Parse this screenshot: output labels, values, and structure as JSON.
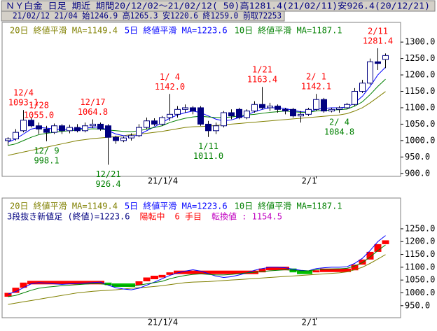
{
  "header": {
    "line1": "ＮＹ白金 日足 期近 期間20/12/02～21/02/12( 50)高1281.4(21/02/11)安926.4(20/12/21)",
    "line2": "21/02/12 21/04 始1246.9 高1265.3 安1220.6 終1259.0 前取72253"
  },
  "chart_data": [
    {
      "type": "candlestick",
      "categories": [
        null,
        null,
        null,
        null,
        null,
        null,
        null,
        null,
        null,
        null,
        null,
        null,
        null,
        null,
        null,
        null,
        null,
        null,
        null,
        null,
        null,
        "21/1/4",
        null,
        null,
        null,
        null,
        null,
        null,
        null,
        null,
        null,
        null,
        null,
        null,
        null,
        null,
        null,
        null,
        null,
        null,
        "2/1",
        null,
        null,
        null,
        null,
        null,
        null,
        null,
        null,
        null
      ],
      "open": [
        1000,
        1005,
        1030,
        1062,
        1045,
        1035,
        1025,
        1045,
        1030,
        1040,
        1030,
        1045,
        1050,
        1045,
        1010,
        1000,
        1008,
        1015,
        1040,
        1060,
        1050,
        1070,
        1080,
        1095,
        1100,
        1100,
        1050,
        1030,
        1045,
        1085,
        1095,
        1070,
        1090,
        1110,
        1100,
        1105,
        1095,
        1095,
        1075,
        1080,
        1095,
        1125,
        1090,
        1095,
        1100,
        1110,
        1150,
        1175,
        1240,
        1246.9
      ],
      "high": [
        1010,
        1035,
        1093.1,
        1070,
        1055,
        1045,
        1052,
        1050,
        1048,
        1050,
        1055,
        1064.8,
        1055,
        1050,
        1015,
        1012,
        1022,
        1050,
        1070,
        1068,
        1075,
        1142.0,
        1105,
        1110,
        1105,
        1105,
        1060,
        1055,
        1090,
        1095,
        1100,
        1095,
        1120,
        1163.4,
        1115,
        1110,
        1100,
        1100,
        1090,
        1100,
        1142.1,
        1130,
        1100,
        1105,
        1115,
        1160,
        1185,
        1250,
        1281.4,
        1265.3
      ],
      "low": [
        985,
        1000,
        1025,
        1040,
        1020,
        998.1,
        1020,
        1020,
        1022,
        1025,
        1025,
        1038,
        1030,
        926.4,
        990,
        995,
        1000,
        1010,
        1035,
        1045,
        1045,
        1060,
        1070,
        1085,
        1080,
        1045,
        1011.0,
        1020,
        1040,
        1065,
        1065,
        1065,
        1085,
        1095,
        1090,
        1085,
        1080,
        1070,
        1055.0,
        1075,
        1090,
        1085,
        1086,
        1084.8,
        1095,
        1105,
        1145,
        1170,
        1215,
        1220.6
      ],
      "close": [
        1005,
        1025,
        1062,
        1045,
        1035,
        1025,
        1045,
        1030,
        1040,
        1030,
        1045,
        1050,
        1035,
        1010,
        1000,
        1008,
        1015,
        1040,
        1060,
        1050,
        1070,
        1080,
        1095,
        1100,
        1090,
        1050,
        1030,
        1045,
        1085,
        1075,
        1070,
        1090,
        1110,
        1100,
        1105,
        1095,
        1090,
        1075,
        1080,
        1095,
        1125,
        1090,
        1095,
        1100,
        1110,
        1150,
        1175,
        1240,
        1235,
        1259.0
      ],
      "up_color": "#ffffff",
      "down_color": "#000080",
      "series": [
        {
          "name": "20日 終値平滑 MA=1149.4",
          "color": "#808000",
          "values": [
            955,
            960,
            965,
            970,
            975,
            980,
            985,
            990,
            995,
            1000,
            1003,
            1006,
            1008,
            1010,
            1012,
            1015,
            1018,
            1020,
            1022,
            1025,
            1028,
            1032,
            1036,
            1040,
            1042,
            1043,
            1044,
            1046,
            1048,
            1050,
            1052,
            1054,
            1056,
            1058,
            1060,
            1062,
            1064,
            1066,
            1068,
            1070,
            1072,
            1074,
            1076,
            1078,
            1082,
            1090,
            1100,
            1115,
            1132,
            1149.4
          ]
        },
        {
          "name": "5日 終値平滑 MA=1223.6",
          "color": "#0000ff",
          "values": [
            995,
            1005,
            1020,
            1035,
            1040,
            1038,
            1035,
            1033,
            1035,
            1036,
            1038,
            1040,
            1042,
            1030,
            1020,
            1015,
            1012,
            1018,
            1030,
            1042,
            1055,
            1068,
            1078,
            1085,
            1090,
            1085,
            1075,
            1065,
            1060,
            1063,
            1070,
            1078,
            1088,
            1095,
            1100,
            1100,
            1098,
            1092,
            1088,
            1086,
            1095,
            1098,
            1100,
            1100,
            1102,
            1115,
            1135,
            1165,
            1200,
            1223.6
          ]
        },
        {
          "name": "10日 終値平滑 MA=1187.1",
          "color": "#008000",
          "values": [
            985,
            990,
            1000,
            1010,
            1018,
            1022,
            1025,
            1028,
            1030,
            1032,
            1034,
            1036,
            1035,
            1032,
            1030,
            1028,
            1027,
            1030,
            1035,
            1040,
            1045,
            1055,
            1062,
            1068,
            1072,
            1074,
            1072,
            1070,
            1070,
            1072,
            1075,
            1078,
            1080,
            1083,
            1086,
            1088,
            1090,
            1088,
            1086,
            1086,
            1090,
            1092,
            1093,
            1094,
            1096,
            1105,
            1118,
            1140,
            1165,
            1187.1
          ]
        }
      ],
      "ylim": [
        891,
        1360
      ],
      "yticks": [
        {
          "value": 900,
          "label": "900.0"
        },
        {
          "value": 950,
          "label": "950.0"
        },
        {
          "value": 1000,
          "label": "1000.0"
        },
        {
          "value": 1050,
          "label": "1050.0"
        },
        {
          "value": 1100,
          "label": "1100.0"
        },
        {
          "value": 1150,
          "label": "1150.0"
        },
        {
          "value": 1200,
          "label": "1200.0"
        },
        {
          "value": 1250,
          "label": "1250.0"
        },
        {
          "value": 1300,
          "label": "1300.0"
        }
      ],
      "high_color": "#ff0000",
      "low_color": "#008000",
      "annotations": [
        {
          "date": "12/4",
          "value": 1093.1
        },
        {
          "date": "12/ 9",
          "value": 998.1
        },
        {
          "date": "12/17",
          "value": 1064.8
        },
        {
          "date": "12/21",
          "value": 926.4
        },
        {
          "date": "1/ 4",
          "value": 1142.0,
          "label": "1142.0"
        },
        {
          "date": "1/11",
          "value": 1011.0,
          "label": "1011.0"
        },
        {
          "date": "1/21",
          "value": 1163.4
        },
        {
          "date": "1/28",
          "value": 1055.0,
          "label": "1055.0"
        },
        {
          "date": "2/ 1",
          "value": 1142.1
        },
        {
          "date": "2/ 4",
          "value": 1084.8
        },
        {
          "date": "2/11",
          "value": 1281.4
        }
      ]
    },
    {
      "type": "line_break",
      "categories": [
        null,
        null,
        null,
        null,
        null,
        null,
        null,
        null,
        null,
        null,
        null,
        null,
        null,
        null,
        null,
        null,
        null,
        null,
        null,
        null,
        null,
        "21/1/4",
        null,
        null,
        null,
        null,
        null,
        null,
        null,
        null,
        null,
        null,
        null,
        null,
        null,
        null,
        null,
        null,
        null,
        null,
        "2/1",
        null,
        null,
        null,
        null,
        null,
        null,
        null,
        null,
        null
      ],
      "status": [
        {
          "text": "3段抜き新値足 (終値)=1223.6",
          "color": "#000080"
        },
        {
          "text": "陽転中",
          "color": "#ff0000"
        },
        {
          "text": "6 手目",
          "color": "#ff0000"
        },
        {
          "text": "転換値 : 1154.5",
          "color": "#c000c0"
        }
      ],
      "base": 985,
      "values": [
        1000,
        1020,
        1040,
        1040,
        1040,
        1040,
        1040,
        1040,
        1040,
        1040,
        1040,
        1040,
        1040,
        1030,
        1030,
        1030,
        1030,
        1045,
        1060,
        1060,
        1070,
        1080,
        1080,
        1080,
        1080,
        1080,
        1080,
        1080,
        1080,
        1080,
        1080,
        1080,
        1080,
        1095,
        1095,
        1095,
        1095,
        1080,
        1080,
        1080,
        1088,
        1088,
        1088,
        1088,
        1088,
        1110,
        1130,
        1160,
        1190,
        1205
      ],
      "up_color": "#ff0000",
      "down_color": "#00c000",
      "series": [
        {
          "name": "20日 終値平滑 MA=1149.4",
          "color": "#808000",
          "values": [
            955,
            960,
            965,
            970,
            975,
            980,
            985,
            990,
            995,
            1000,
            1003,
            1006,
            1008,
            1010,
            1012,
            1015,
            1018,
            1020,
            1022,
            1025,
            1028,
            1032,
            1036,
            1040,
            1042,
            1043,
            1044,
            1046,
            1048,
            1050,
            1052,
            1054,
            1056,
            1058,
            1060,
            1062,
            1064,
            1066,
            1068,
            1070,
            1072,
            1074,
            1076,
            1078,
            1082,
            1090,
            1100,
            1115,
            1132,
            1149.4
          ]
        },
        {
          "name": "5日 終値平滑 MA=1223.6",
          "color": "#0000ff",
          "values": [
            995,
            1005,
            1020,
            1035,
            1040,
            1038,
            1035,
            1033,
            1035,
            1036,
            1038,
            1040,
            1042,
            1030,
            1020,
            1015,
            1012,
            1018,
            1030,
            1042,
            1055,
            1068,
            1078,
            1085,
            1090,
            1085,
            1075,
            1065,
            1060,
            1063,
            1070,
            1078,
            1088,
            1095,
            1100,
            1100,
            1098,
            1092,
            1088,
            1086,
            1095,
            1098,
            1100,
            1100,
            1102,
            1115,
            1135,
            1165,
            1200,
            1223.6
          ]
        },
        {
          "name": "10日 終値平滑 MA=1187.1",
          "color": "#008000",
          "values": [
            985,
            990,
            1000,
            1010,
            1018,
            1022,
            1025,
            1028,
            1030,
            1032,
            1034,
            1036,
            1035,
            1032,
            1030,
            1028,
            1027,
            1030,
            1035,
            1040,
            1045,
            1055,
            1062,
            1068,
            1072,
            1074,
            1072,
            1070,
            1070,
            1072,
            1075,
            1078,
            1080,
            1083,
            1086,
            1088,
            1090,
            1088,
            1086,
            1086,
            1090,
            1092,
            1093,
            1094,
            1096,
            1105,
            1118,
            1140,
            1165,
            1187.1
          ]
        }
      ],
      "ylim": [
        903,
        1370
      ],
      "yticks": [
        {
          "value": 950,
          "label": "950.0"
        },
        {
          "value": 1000,
          "label": "1000.0"
        },
        {
          "value": 1050,
          "label": "1050.0"
        },
        {
          "value": 1100,
          "label": "1100.0"
        },
        {
          "value": 1150,
          "label": "1150.0"
        },
        {
          "value": 1200,
          "label": "1200.0"
        },
        {
          "value": 1250,
          "label": "1250.0"
        }
      ]
    }
  ]
}
